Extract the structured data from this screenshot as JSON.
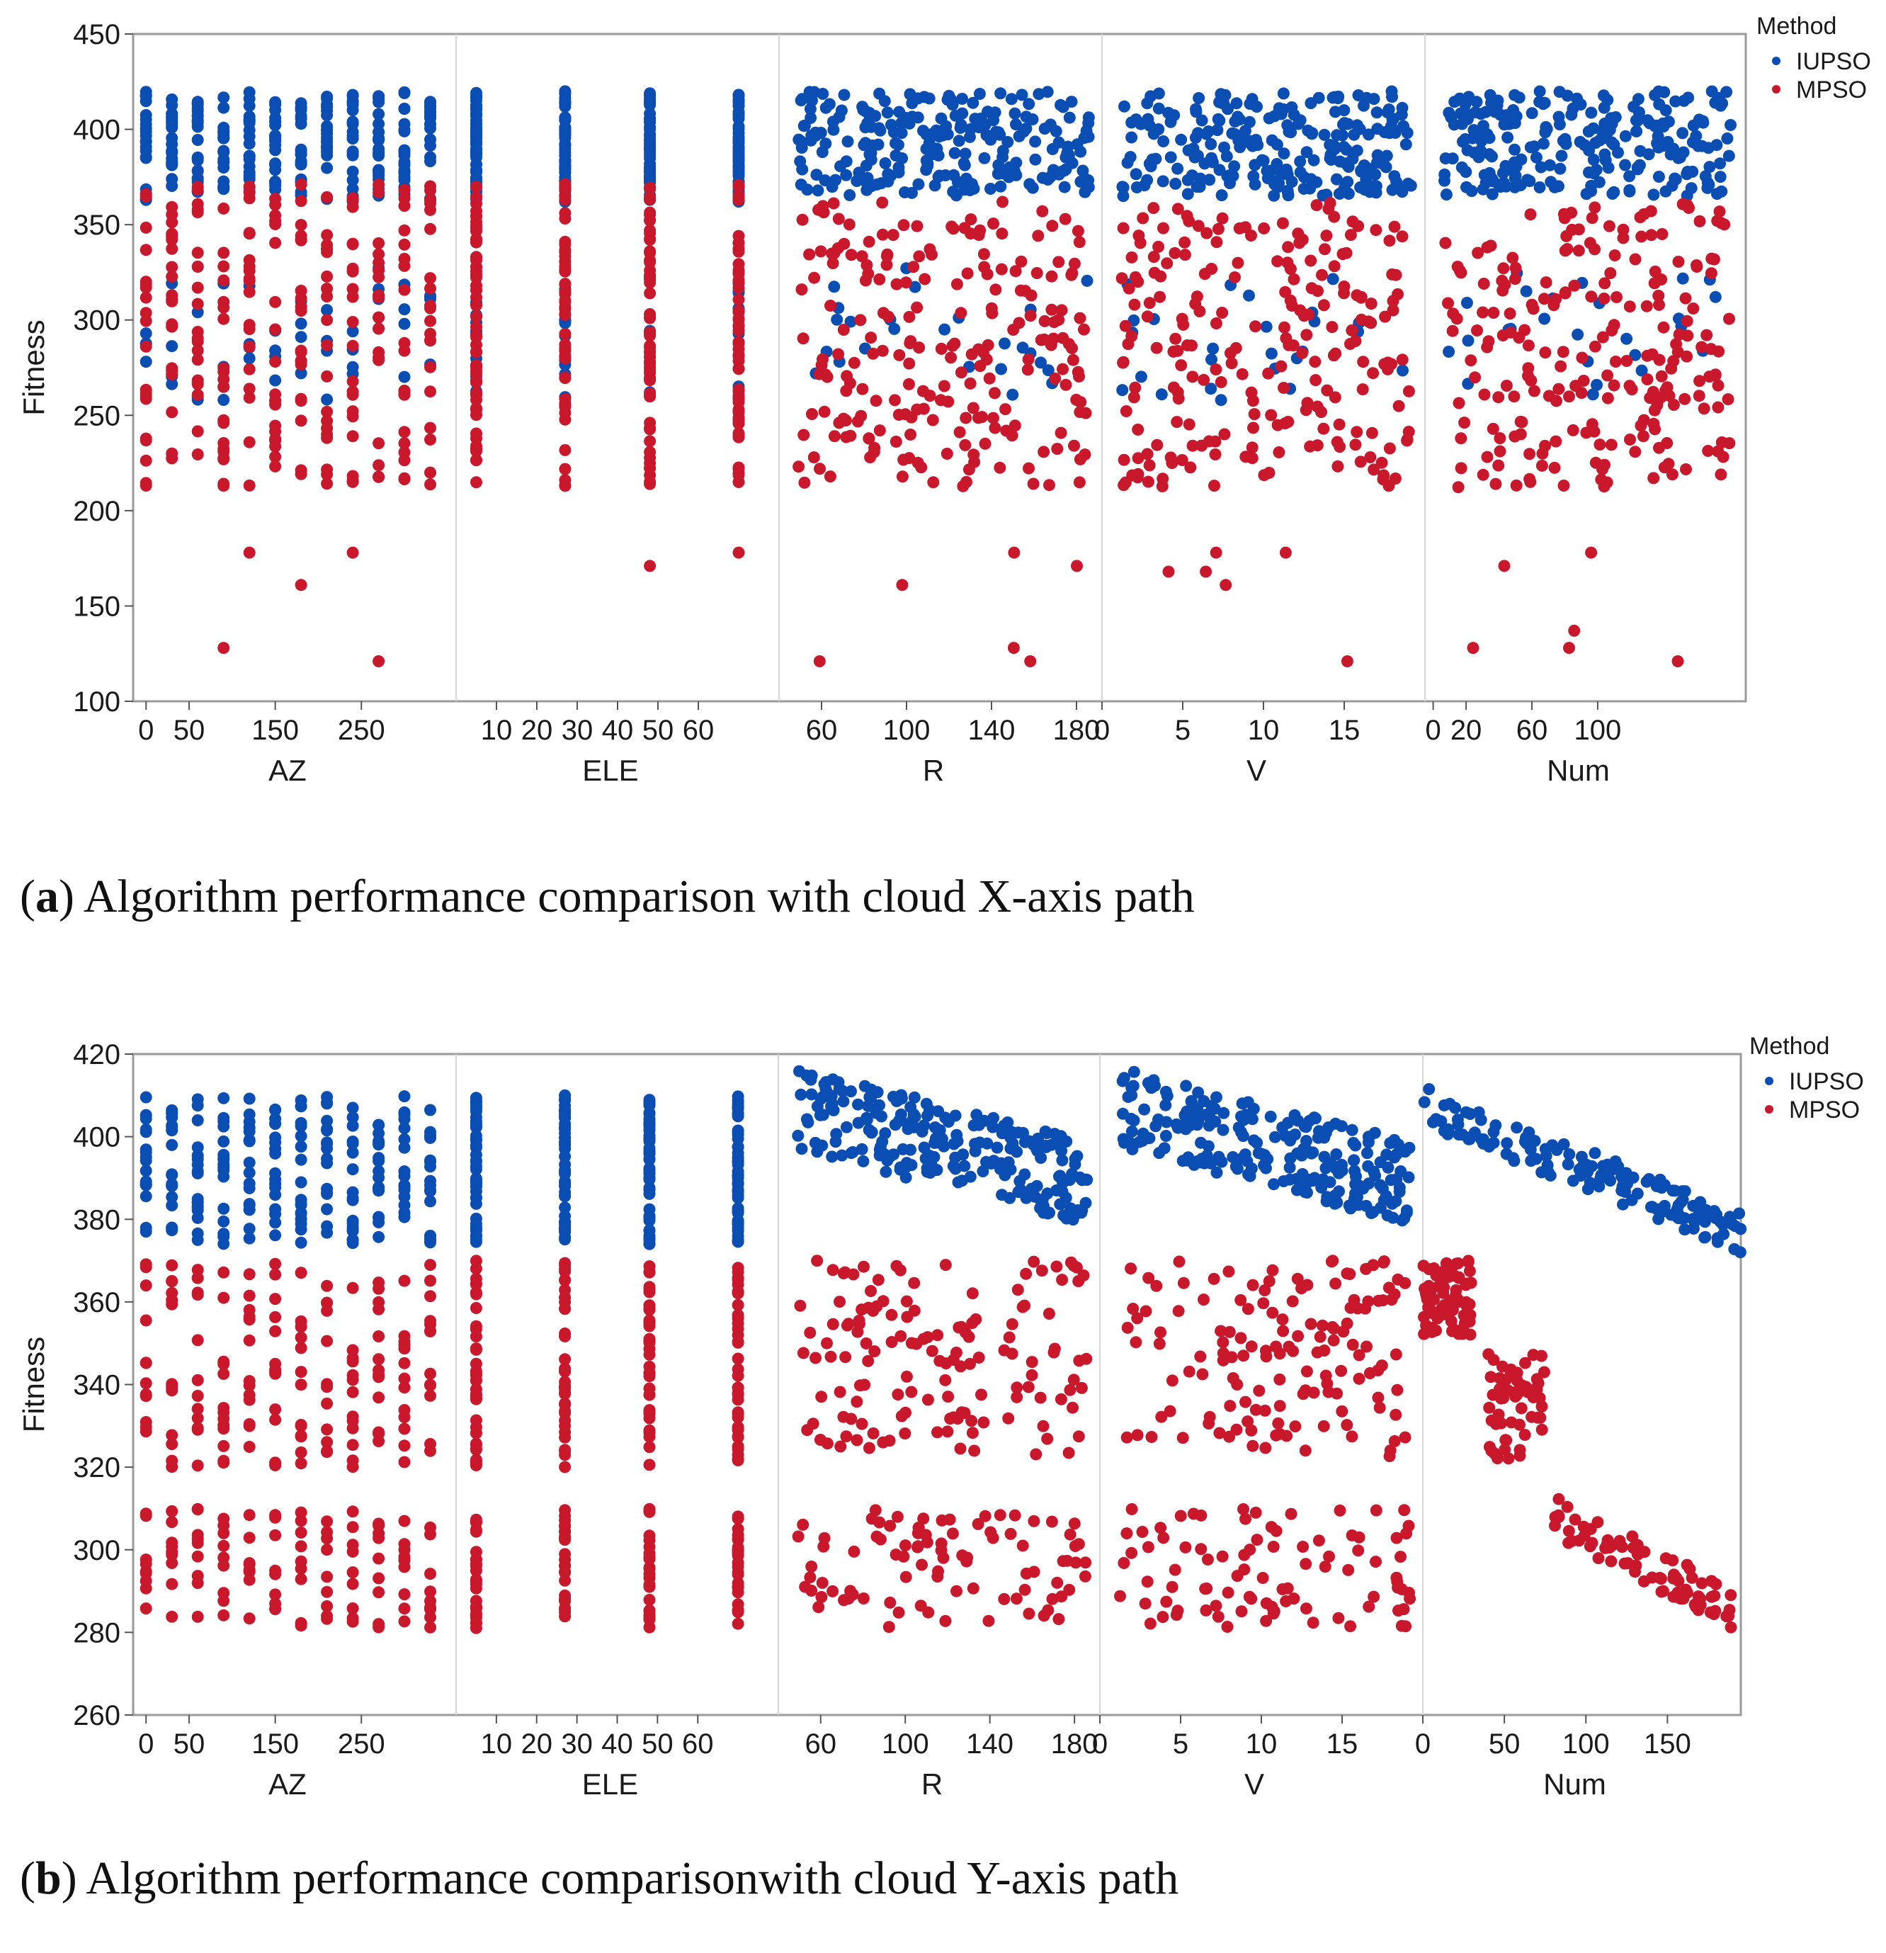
{
  "colors": {
    "iupso": "#0b4eb3",
    "mpso": "#c9182b",
    "frame": "#9a9a9a",
    "divider": "#d6d6d6"
  },
  "chart_data": [
    {
      "type": "scatter",
      "id": "a",
      "ylabel": "Fitness",
      "ylim": [
        100,
        450
      ],
      "yticks": [
        "450",
        "400",
        "350",
        "300",
        "250",
        "200",
        "150",
        "100"
      ],
      "legend": {
        "title": "Method",
        "entries": [
          "IUPSO",
          "MPSO"
        ],
        "position": "top-right"
      },
      "panels": [
        {
          "name": "AZ",
          "range": [
            -15,
            360
          ],
          "ticks": [
            "0",
            "50",
            "150",
            "250"
          ],
          "tick_values": [
            0,
            50,
            150,
            250
          ],
          "x": [
            0,
            30,
            60,
            90,
            120,
            150,
            180,
            210,
            240,
            270,
            300,
            330
          ]
        },
        {
          "name": "ELE",
          "range": [
            0,
            80
          ],
          "ticks": [
            "10",
            "20",
            "30",
            "40",
            "50",
            "60"
          ],
          "tick_values": [
            10,
            20,
            30,
            40,
            50,
            60
          ],
          "x": [
            5,
            27,
            48,
            70
          ]
        },
        {
          "name": "R",
          "range": [
            40,
            192
          ],
          "ticks": [
            "60",
            "100",
            "140",
            "180"
          ],
          "tick_values": [
            60,
            100,
            140,
            180
          ]
        },
        {
          "name": "V",
          "range": [
            0,
            20
          ],
          "ticks": [
            "0",
            "5",
            "10",
            "15"
          ],
          "tick_values": [
            0,
            5,
            10,
            15
          ]
        },
        {
          "name": "Num",
          "range": [
            -5,
            190
          ],
          "ticks": [
            "0",
            "20",
            "60",
            "100"
          ],
          "tick_values": [
            0,
            20,
            60,
            100
          ]
        }
      ],
      "series": [
        {
          "name": "IUPSO",
          "color": "#0b4eb3",
          "values": {
            "main": [
              362,
              420
            ],
            "low": [
              255,
              330
            ]
          }
        },
        {
          "name": "MPSO",
          "color": "#c9182b",
          "values": {
            "main": [
              210,
              372
            ],
            "outliers": [
              121,
              128,
              137,
              161,
              168,
              171,
              178
            ]
          }
        }
      ],
      "caption": {
        "label": "a",
        "text": ") Algorithm performance comparison with cloud X-axis path",
        "open": "("
      }
    },
    {
      "type": "scatter",
      "id": "b",
      "ylabel": "Fitness",
      "ylim": [
        260,
        420
      ],
      "yticks": [
        "420",
        "400",
        "380",
        "360",
        "340",
        "320",
        "300",
        "280",
        "260"
      ],
      "legend": {
        "title": "Method",
        "entries": [
          "IUPSO",
          "MPSO"
        ],
        "position": "top-right"
      },
      "panels": [
        {
          "name": "AZ",
          "range": [
            -15,
            360
          ],
          "ticks": [
            "0",
            "50",
            "150",
            "250"
          ],
          "tick_values": [
            0,
            50,
            150,
            250
          ],
          "x": [
            0,
            30,
            60,
            90,
            120,
            150,
            180,
            210,
            240,
            270,
            300,
            330
          ]
        },
        {
          "name": "ELE",
          "range": [
            0,
            80
          ],
          "ticks": [
            "10",
            "20",
            "30",
            "40",
            "50",
            "60"
          ],
          "tick_values": [
            10,
            20,
            30,
            40,
            50,
            60
          ],
          "x": [
            5,
            27,
            48,
            70
          ]
        },
        {
          "name": "R",
          "range": [
            40,
            192
          ],
          "ticks": [
            "60",
            "100",
            "140",
            "180"
          ],
          "tick_values": [
            60,
            100,
            140,
            180
          ]
        },
        {
          "name": "V",
          "range": [
            0,
            20
          ],
          "ticks": [
            "0",
            "5",
            "10",
            "15"
          ],
          "tick_values": [
            0,
            5,
            10,
            15
          ]
        },
        {
          "name": "Num",
          "range": [
            0,
            195
          ],
          "ticks": [
            "0",
            "50",
            "100",
            "150"
          ],
          "tick_values": [
            0,
            50,
            100,
            150
          ]
        }
      ],
      "series": [
        {
          "name": "IUPSO",
          "color": "#0b4eb3",
          "values": {
            "main": [
              372,
              410
            ]
          }
        },
        {
          "name": "MPSO",
          "color": "#c9182b",
          "values": {
            "bands": [
              [
                320,
                370
              ],
              [
                281,
                310
              ]
            ]
          }
        }
      ],
      "caption": {
        "label": "b",
        "text": ") Algorithm performance comparisonwith cloud Y-axis path",
        "open": "("
      }
    }
  ]
}
